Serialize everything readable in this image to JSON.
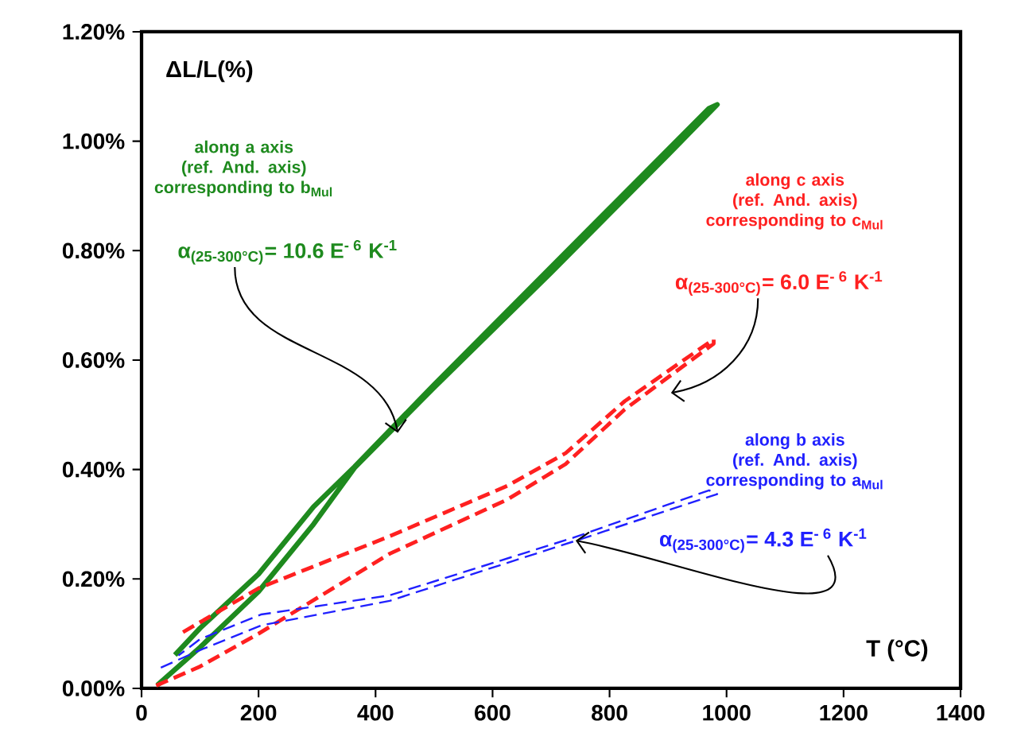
{
  "chart_data": {
    "type": "line",
    "ylabel": "ΔL/L(%)",
    "xlabel": "T (°C)",
    "xlim": [
      0,
      1400
    ],
    "xticks": [
      0,
      200,
      400,
      600,
      800,
      1000,
      1200,
      1400
    ],
    "ylim": [
      0,
      1.2
    ],
    "yticks": [
      {
        "value": 0,
        "label": "0.00%"
      },
      {
        "value": 0.2,
        "label": "0.20%"
      },
      {
        "value": 0.4,
        "label": "0.40%"
      },
      {
        "value": 0.6,
        "label": "0.60%"
      },
      {
        "value": 0.8,
        "label": "0.80%"
      },
      {
        "value": 1.0,
        "label": "1.00%"
      },
      {
        "value": 1.2,
        "label": "1.20%"
      }
    ],
    "series": [
      {
        "name": "along a axis (ref. And. axis) corresponding to b$_{Mul}$",
        "color": "#1e8a1e",
        "line_style": "solid",
        "x": [
          27,
          100,
          200,
          294,
          364,
          500,
          700,
          900,
          984,
          970,
          700,
          500,
          364,
          294,
          200,
          100,
          57
        ],
        "values": [
          0.006,
          0.075,
          0.177,
          0.3,
          0.403,
          0.55,
          0.76,
          0.975,
          1.067,
          1.06,
          0.77,
          0.555,
          0.405,
          0.332,
          0.209,
          0.11,
          0.061
        ]
      },
      {
        "name": "along c axis (ref. And. axis) corresponding to c$_{Mul}$",
        "color": "#ff2020",
        "line_style": "dashed",
        "x": [
          25,
          100,
          200,
          424,
          625,
          725,
          826,
          978,
          978,
          826,
          725,
          625,
          424,
          200,
          68
        ],
        "values": [
          0.005,
          0.04,
          0.1,
          0.246,
          0.345,
          0.41,
          0.51,
          0.63,
          0.638,
          0.525,
          0.43,
          0.37,
          0.278,
          0.183,
          0.101
        ]
      },
      {
        "name": "along b axis (ref. And. axis) corresponding to a$_{Mul}$",
        "color": "#2020ff",
        "line_style": "dashed",
        "x": [
          33,
          100,
          204,
          424,
          737,
          984,
          970,
          737,
          424,
          204,
          100,
          63
        ],
        "values": [
          0.038,
          0.07,
          0.115,
          0.16,
          0.268,
          0.355,
          0.362,
          0.275,
          0.17,
          0.135,
          0.09,
          0.06
        ]
      }
    ],
    "annotations": [
      {
        "text": "α$_{(25-300°C)}$= 10.6 E$^{- 6}$ K$^{-1}$",
        "x": 438,
        "y": 0.467
      },
      "α$_{(25-300°C)}$= 6.0 E$^{- 6}$ K$^{-1}$",
      {
        "text": "α$_{(25-300°C)}$= 4.3 E$^{- 6}$ K$^{-1}$",
        "x": 742,
        "y": 0.27
      }
    ]
  }
}
